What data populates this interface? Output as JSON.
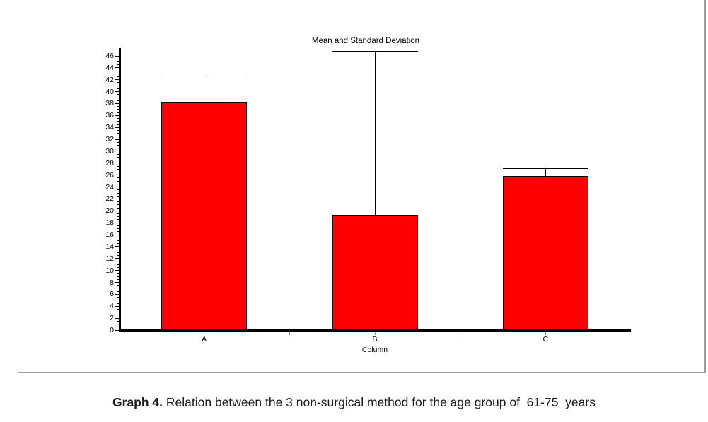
{
  "chart_data": {
    "type": "bar",
    "title": "Mean and Standard Deviation",
    "xlabel": "Column",
    "ylabel": "",
    "categories": [
      "A",
      "B",
      "C"
    ],
    "series": [
      {
        "name": "Mean",
        "values": [
          38.2,
          19.3,
          25.8
        ]
      }
    ],
    "error_plus": [
      4.8,
      27.5,
      1.4
    ],
    "ylim": [
      0,
      46
    ],
    "ytick_step": 2,
    "minor_ticks_per_major": 4,
    "grid": false,
    "legend": false,
    "bar_color": "#ff0000",
    "bar_border_color": "#000000",
    "axis_color": "#000000",
    "error_bar_color": "#000000"
  },
  "caption": {
    "bold": "Graph 4.",
    "rest": " Relation between the 3 non-surgical method for the age group of  61-75  years"
  },
  "page": {
    "divider_color": "#9c9c9c"
  }
}
